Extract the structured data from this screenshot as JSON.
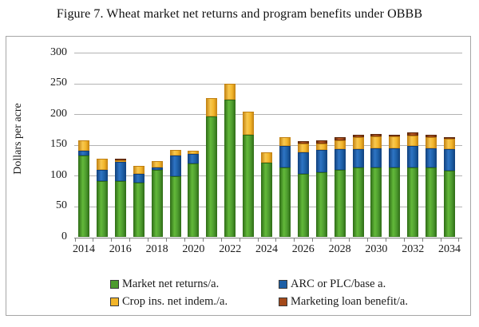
{
  "title": "Figure 7. Wheat market net returns and program benefits under OBBB",
  "y_axis": {
    "label": "Dollars per acre",
    "ticks": [
      0,
      50,
      100,
      150,
      200,
      250,
      300
    ]
  },
  "x_axis": {
    "tick_labels": [
      "2014",
      "2016",
      "2018",
      "2020",
      "2022",
      "2024",
      "2026",
      "2028",
      "2030",
      "2032",
      "2034"
    ]
  },
  "legend": {
    "rows": [
      [
        "Market net returns/a.",
        "ARC or PLC/base a."
      ],
      [
        "Crop ins. net indem./a.",
        "Marketing loan benefit/a."
      ]
    ]
  },
  "colors": {
    "market": "#4d9b2e",
    "arc_plc": "#1d5fa6",
    "crop_ins": "#f2b52a",
    "mkt_loan": "#a4491a",
    "gridline": "#b3b3b3",
    "axis": "#7f7f7f",
    "box_border": "#a6a6a6"
  },
  "chart_data": {
    "type": "bar",
    "stacked": true,
    "title": "Figure 7. Wheat market net returns and program benefits under OBBB",
    "xlabel": "",
    "ylabel": "Dollars per acre",
    "ylim": [
      0,
      300
    ],
    "grid": "horizontal",
    "legend_position": "bottom",
    "categories": [
      2014,
      2015,
      2016,
      2017,
      2018,
      2019,
      2020,
      2021,
      2022,
      2023,
      2024,
      2025,
      2026,
      2027,
      2028,
      2029,
      2030,
      2031,
      2032,
      2033,
      2034
    ],
    "series": [
      {
        "name": "Market net returns/a.",
        "color": "#4d9b2e",
        "edge": "#2e6b16",
        "light": "#63b93a",
        "values": [
          133,
          91,
          92,
          89,
          110,
          99,
          120,
          196,
          223,
          166,
          121,
          113,
          103,
          105,
          110,
          114,
          113,
          114,
          113,
          113,
          108
        ]
      },
      {
        "name": "ARC or PLC/base a.",
        "color": "#1d5fa6",
        "edge": "#10407c",
        "light": "#2e74c4",
        "values": [
          7,
          19,
          30,
          14,
          3,
          34,
          16,
          0,
          0,
          0,
          0,
          36,
          35,
          37,
          33,
          29,
          31,
          31,
          35,
          32,
          35
        ]
      },
      {
        "name": "Crop ins. net indem./a.",
        "color": "#f2b52a",
        "edge": "#c07f10",
        "light": "#f8c84f",
        "values": [
          18,
          18,
          3,
          13,
          11,
          9,
          5,
          30,
          27,
          38,
          17,
          14,
          14,
          10,
          15,
          19,
          20,
          19,
          17,
          18,
          17
        ]
      },
      {
        "name": "Marketing loan benefit/a.",
        "color": "#a4491a",
        "edge": "#5a2508",
        "light": "#b85a22",
        "values": [
          0,
          0,
          3,
          0,
          0,
          0,
          0,
          0,
          0,
          0,
          0,
          0,
          4,
          5,
          5,
          4,
          4,
          3,
          5,
          3,
          3
        ]
      }
    ]
  }
}
